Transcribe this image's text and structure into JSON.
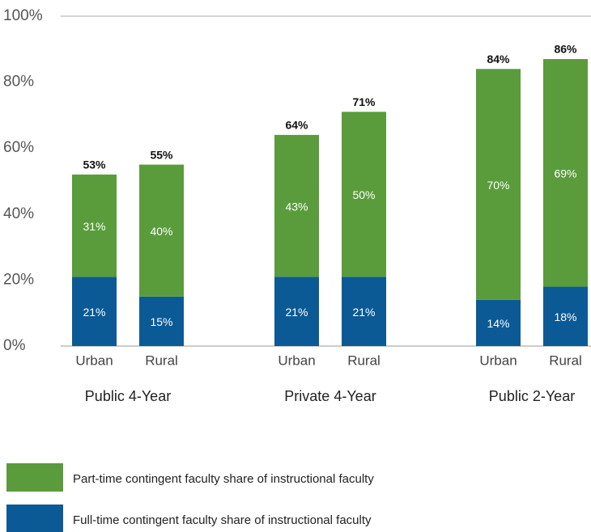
{
  "chart_data": {
    "type": "bar",
    "stacked": true,
    "groups": [
      {
        "name": "Public 4-Year",
        "categories": [
          "Urban",
          "Rural"
        ]
      },
      {
        "name": "Private 4-Year",
        "categories": [
          "Urban",
          "Rural"
        ]
      },
      {
        "name": "Public 2-Year",
        "categories": [
          "Urban",
          "Rural"
        ]
      }
    ],
    "series": [
      {
        "name": "Full-time contingent faculty share of instructional faculty",
        "color": "#0b5a96",
        "values": [
          21,
          15,
          21,
          21,
          14,
          18
        ],
        "value_labels": [
          "21%",
          "15%",
          "21%",
          "21%",
          "14%",
          "18%"
        ]
      },
      {
        "name": "Part-time contingent faculty share of instructional faculty",
        "color": "#5a9c3c",
        "values": [
          31,
          40,
          43,
          50,
          70,
          69
        ],
        "value_labels": [
          "31%",
          "40%",
          "43%",
          "50%",
          "70%",
          "69%"
        ]
      }
    ],
    "totals": {
      "values": [
        53,
        55,
        64,
        71,
        84,
        86
      ],
      "value_labels": [
        "53%",
        "55%",
        "64%",
        "71%",
        "84%",
        "86%"
      ]
    },
    "ylim": [
      0,
      100
    ],
    "yticks": [
      {
        "value": 0,
        "label": "0%"
      },
      {
        "value": 20,
        "label": "20%"
      },
      {
        "value": 40,
        "label": "40%"
      },
      {
        "value": 60,
        "label": "60%"
      },
      {
        "value": 80,
        "label": "80%"
      },
      {
        "value": 100,
        "label": "100%"
      }
    ],
    "grid": false
  }
}
